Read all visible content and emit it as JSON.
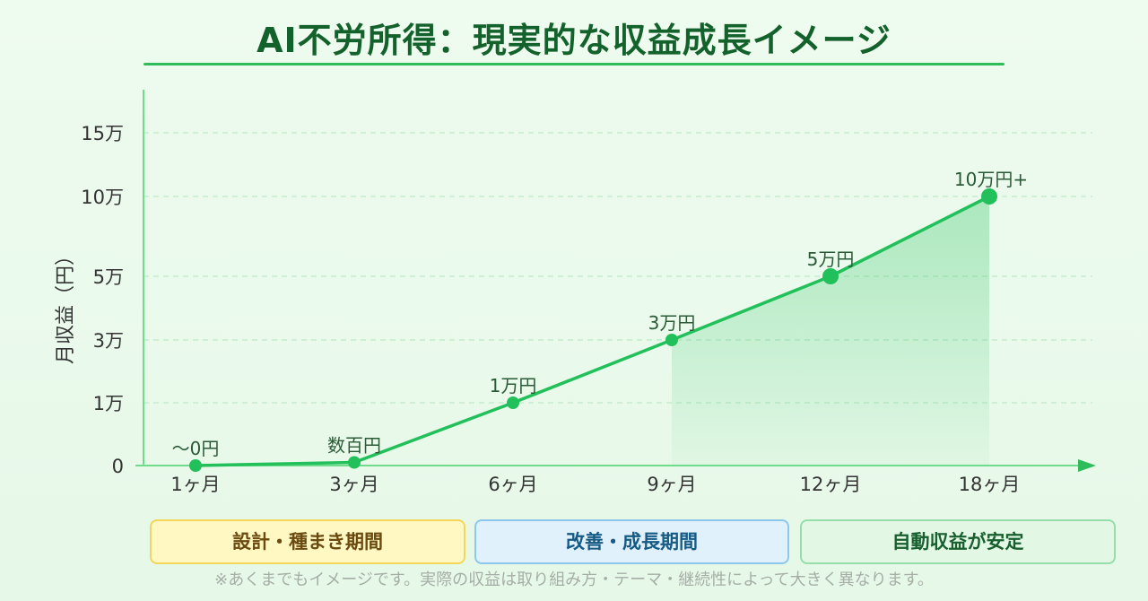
{
  "title": "AI不労所得：現実的な収益成長イメージ",
  "colors": {
    "line": "#22c05a",
    "point": "#22c05a",
    "axis": "#6fdc8c",
    "grid": "#bfe9c8",
    "text": "#333333",
    "label": "#2a5a36"
  },
  "chart_data": {
    "type": "line",
    "title": "AI不労所得：現実的な収益成長イメージ",
    "xlabel": "",
    "ylabel": "月収益（円）",
    "categories": [
      "1ヶ月",
      "3ヶ月",
      "6ヶ月",
      "9ヶ月",
      "12ヶ月",
      "18ヶ月"
    ],
    "y_ticks": [
      {
        "value": 0,
        "label": "0"
      },
      {
        "value": 10000,
        "label": "1万"
      },
      {
        "value": 30000,
        "label": "3万"
      },
      {
        "value": 50000,
        "label": "5万"
      },
      {
        "value": 100000,
        "label": "10万"
      },
      {
        "value": 150000,
        "label": "15万"
      }
    ],
    "series": [
      {
        "values": [
          0,
          500,
          10000,
          30000,
          50000,
          100000
        ],
        "data_labels": [
          "〜0円",
          "数百円",
          "1万円",
          "3万円",
          "5万円",
          "10万円+"
        ]
      }
    ],
    "ylim": [
      0,
      150000
    ],
    "grid": true,
    "area_fill_from": "9ヶ月"
  },
  "phases": [
    {
      "label": "設計・種まき期間"
    },
    {
      "label": "改善・成長期間"
    },
    {
      "label": "自動収益が安定"
    }
  ],
  "note": "※あくまでもイメージです。実際の収益は取り組み方・テーマ・継続性によって大きく異なります。"
}
